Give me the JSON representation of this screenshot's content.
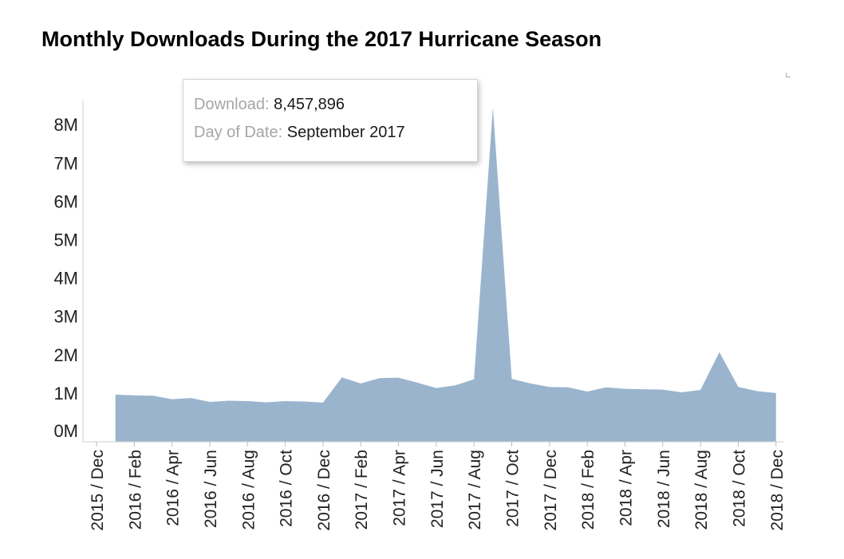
{
  "chart_data": {
    "type": "area",
    "title": "Monthly Downloads During the 2017 Hurricane Season",
    "xlabel": "",
    "ylabel": "",
    "x_tick_labels": [
      "2015 / Dec",
      "2016 / Feb",
      "2016 / Apr",
      "2016 / Jun",
      "2016 / Aug",
      "2016 / Oct",
      "2016 / Dec",
      "2017 / Feb",
      "2017 / Apr",
      "2017 / Jun",
      "2017 / Aug",
      "2017 / Oct",
      "2017 / Dec",
      "2018 / Feb",
      "2018 / Apr",
      "2018 / Jun",
      "2018 / Aug",
      "2018 / Oct",
      "2018 / Dec"
    ],
    "y_tick_labels": [
      "0M",
      "1M",
      "2M",
      "3M",
      "4M",
      "5M",
      "6M",
      "7M",
      "8M"
    ],
    "y_ticks": [
      0,
      1000000,
      2000000,
      3000000,
      4000000,
      5000000,
      6000000,
      7000000,
      8000000
    ],
    "ylim": [
      -260000,
      8700000
    ],
    "months": [
      "2016-01",
      "2016-02",
      "2016-03",
      "2016-04",
      "2016-05",
      "2016-06",
      "2016-07",
      "2016-08",
      "2016-09",
      "2016-10",
      "2016-11",
      "2016-12",
      "2017-01",
      "2017-02",
      "2017-03",
      "2017-04",
      "2017-05",
      "2017-06",
      "2017-07",
      "2017-08",
      "2017-09",
      "2017-10",
      "2017-11",
      "2017-12",
      "2018-01",
      "2018-02",
      "2018-03",
      "2018-04",
      "2018-05",
      "2018-06",
      "2018-07",
      "2018-08",
      "2018-09",
      "2018-10",
      "2018-11",
      "2018-12"
    ],
    "values": [
      970000,
      950000,
      940000,
      850000,
      880000,
      780000,
      810000,
      800000,
      770000,
      800000,
      790000,
      760000,
      1420000,
      1260000,
      1400000,
      1410000,
      1280000,
      1140000,
      1210000,
      1370000,
      8457896,
      1380000,
      1260000,
      1170000,
      1160000,
      1050000,
      1160000,
      1120000,
      1110000,
      1100000,
      1030000,
      1090000,
      2080000,
      1170000,
      1060000,
      1010000
    ],
    "fill_color": "#9ab4ce",
    "grid": false,
    "tooltip": {
      "download_key": "Download:",
      "download_value": "8,457,896",
      "date_key": "Day of Date:",
      "date_value": "September 2017"
    }
  }
}
